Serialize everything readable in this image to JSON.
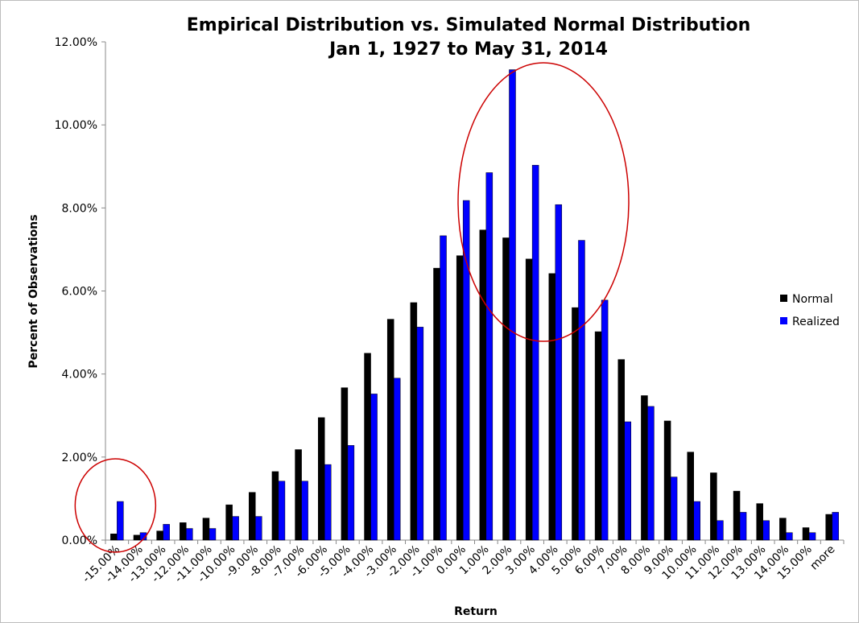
{
  "chart_data": {
    "type": "bar",
    "title": "Empirical Distribution vs. Simulated Normal Distribution",
    "subtitle": "Jan 1, 1927 to May 31, 2014",
    "xlabel": "Return",
    "ylabel": "Percent of Observations",
    "ylim": [
      0,
      0.12
    ],
    "yticks": [
      "0.00%",
      "2.00%",
      "4.00%",
      "6.00%",
      "8.00%",
      "10.00%",
      "12.00%"
    ],
    "grid": false,
    "legend_position": "right",
    "categories": [
      "-15.00%",
      "-14.00%",
      "-13.00%",
      "-12.00%",
      "-11.00%",
      "-10.00%",
      "-9.00%",
      "-8.00%",
      "-7.00%",
      "-6.00%",
      "-5.00%",
      "-4.00%",
      "-3.00%",
      "-2.00%",
      "-1.00%",
      "0.00%",
      "1.00%",
      "2.00%",
      "3.00%",
      "4.00%",
      "5.00%",
      "6.00%",
      "7.00%",
      "8.00%",
      "9.00%",
      "10.00%",
      "11.00%",
      "12.00%",
      "13.00%",
      "14.00%",
      "15.00%",
      "more"
    ],
    "series": [
      {
        "name": "Normal",
        "color": "#000000",
        "values": [
          0.0015,
          0.0012,
          0.0022,
          0.0042,
          0.0053,
          0.0085,
          0.0115,
          0.0165,
          0.0218,
          0.0295,
          0.0367,
          0.045,
          0.0532,
          0.0572,
          0.0655,
          0.0685,
          0.0747,
          0.0728,
          0.0677,
          0.0642,
          0.056,
          0.0502,
          0.0435,
          0.0348,
          0.0287,
          0.0212,
          0.0162,
          0.0118,
          0.0088,
          0.0053,
          0.003,
          0.0062
        ]
      },
      {
        "name": "Realized",
        "color": "#0000ff",
        "values": [
          0.0093,
          0.0018,
          0.0038,
          0.0028,
          0.0028,
          0.0057,
          0.0057,
          0.0142,
          0.0142,
          0.0182,
          0.0228,
          0.0352,
          0.039,
          0.0513,
          0.0733,
          0.0818,
          0.0885,
          0.1133,
          0.0903,
          0.0808,
          0.0722,
          0.0578,
          0.0285,
          0.0322,
          0.0152,
          0.0093,
          0.0047,
          0.0067,
          0.0047,
          0.0018,
          0.0018,
          0.0067
        ]
      }
    ],
    "annotations": [
      {
        "type": "ellipse",
        "color": "#cc0000",
        "encloses": [
          "-15.00%"
        ]
      },
      {
        "type": "ellipse",
        "color": "#cc0000",
        "encloses": [
          "0.00%",
          "1.00%",
          "2.00%",
          "3.00%",
          "4.00%",
          "5.00%"
        ]
      }
    ]
  }
}
